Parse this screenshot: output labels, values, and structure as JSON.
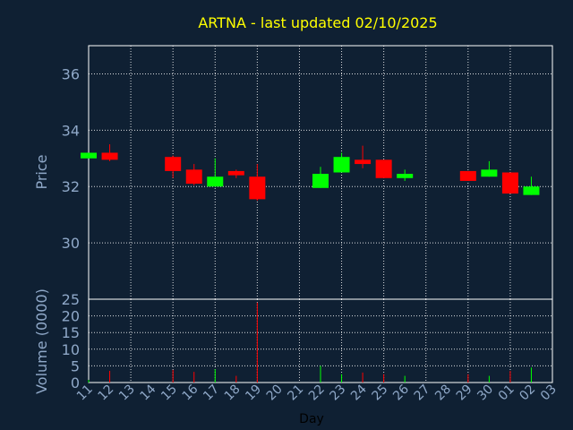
{
  "chart_data": {
    "type": "candlestick",
    "title": "ARTNA - last updated 02/10/2025",
    "xlabel": "Day",
    "colors": {
      "up": "#00ff00",
      "down": "#ff0000",
      "background": "#0f2033",
      "grid": "#ffffff",
      "axis_text": "#8fa8c8",
      "title": "#ffff00"
    },
    "x_ticks": [
      "11",
      "12",
      "13",
      "14",
      "15",
      "16",
      "17",
      "18",
      "19",
      "20",
      "21",
      "22",
      "23",
      "24",
      "25",
      "26",
      "27",
      "28",
      "29",
      "30",
      "01",
      "02",
      "03"
    ],
    "price_panel": {
      "ylabel": "Price",
      "ylim": [
        28.0,
        37.0
      ],
      "ticks": [
        30,
        32,
        34,
        36
      ],
      "candles": [
        {
          "day": "11",
          "open": 33.0,
          "high": 33.2,
          "low": 33.0,
          "close": 33.2
        },
        {
          "day": "12",
          "open": 33.2,
          "high": 33.5,
          "low": 32.9,
          "close": 32.95
        },
        {
          "day": "15",
          "open": 33.05,
          "high": 33.1,
          "low": 32.3,
          "close": 32.55
        },
        {
          "day": "16",
          "open": 32.6,
          "high": 32.8,
          "low": 32.05,
          "close": 32.1
        },
        {
          "day": "17",
          "open": 32.0,
          "high": 33.0,
          "low": 32.0,
          "close": 32.35
        },
        {
          "day": "18",
          "open": 32.55,
          "high": 32.6,
          "low": 32.3,
          "close": 32.4
        },
        {
          "day": "19",
          "open": 32.35,
          "high": 32.8,
          "low": 31.5,
          "close": 31.55
        },
        {
          "day": "22",
          "open": 31.95,
          "high": 32.7,
          "low": 31.95,
          "close": 32.45
        },
        {
          "day": "23",
          "open": 32.5,
          "high": 33.2,
          "low": 32.5,
          "close": 33.05
        },
        {
          "day": "24",
          "open": 32.95,
          "high": 33.45,
          "low": 32.65,
          "close": 32.8
        },
        {
          "day": "25",
          "open": 32.95,
          "high": 32.95,
          "low": 32.3,
          "close": 32.3
        },
        {
          "day": "26",
          "open": 32.3,
          "high": 32.6,
          "low": 32.2,
          "close": 32.45
        },
        {
          "day": "29",
          "open": 32.55,
          "high": 32.55,
          "low": 32.2,
          "close": 32.2
        },
        {
          "day": "30",
          "open": 32.35,
          "high": 32.9,
          "low": 32.35,
          "close": 32.6
        },
        {
          "day": "01",
          "open": 32.5,
          "high": 32.5,
          "low": 31.75,
          "close": 31.75
        },
        {
          "day": "02",
          "open": 31.7,
          "high": 32.35,
          "low": 31.7,
          "close": 32.0
        }
      ]
    },
    "volume_panel": {
      "ylabel": "Volume (0000)",
      "ylim": [
        0,
        25
      ],
      "ticks": [
        0,
        5,
        10,
        15,
        20,
        25
      ],
      "bars": [
        {
          "day": "11",
          "value": 0.8,
          "direction": "up"
        },
        {
          "day": "12",
          "value": 3.5,
          "direction": "down"
        },
        {
          "day": "15",
          "value": 3.8,
          "direction": "down"
        },
        {
          "day": "16",
          "value": 3.2,
          "direction": "down"
        },
        {
          "day": "17",
          "value": 4.0,
          "direction": "up"
        },
        {
          "day": "18",
          "value": 2.0,
          "direction": "down"
        },
        {
          "day": "19",
          "value": 24.0,
          "direction": "down"
        },
        {
          "day": "22",
          "value": 5.0,
          "direction": "up"
        },
        {
          "day": "23",
          "value": 2.5,
          "direction": "up"
        },
        {
          "day": "24",
          "value": 3.0,
          "direction": "down"
        },
        {
          "day": "25",
          "value": 2.5,
          "direction": "down"
        },
        {
          "day": "26",
          "value": 2.0,
          "direction": "up"
        },
        {
          "day": "29",
          "value": 2.5,
          "direction": "down"
        },
        {
          "day": "30",
          "value": 2.0,
          "direction": "up"
        },
        {
          "day": "01",
          "value": 3.5,
          "direction": "down"
        },
        {
          "day": "02",
          "value": 4.5,
          "direction": "up"
        }
      ]
    },
    "grid": true
  }
}
